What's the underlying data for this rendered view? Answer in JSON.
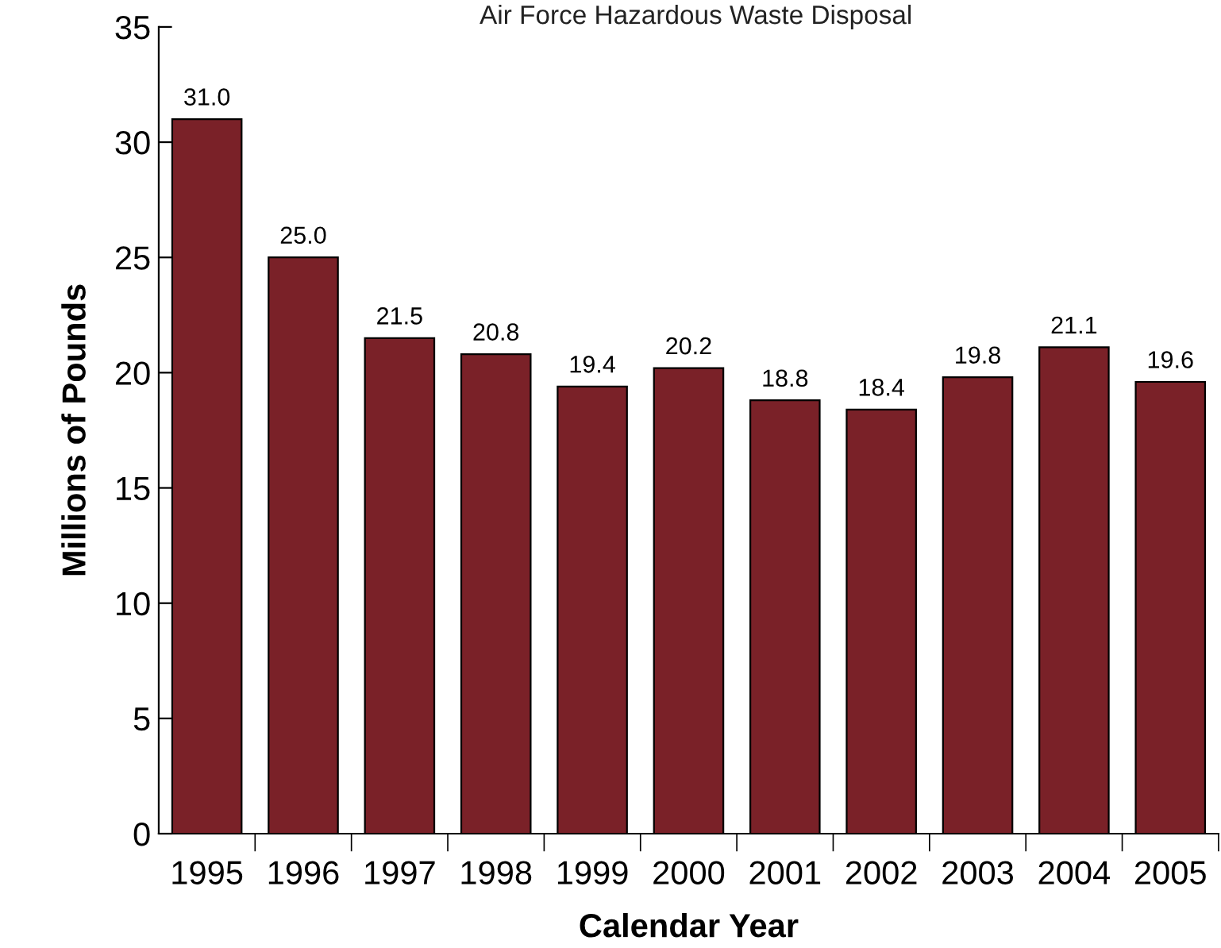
{
  "chart_data": {
    "type": "bar",
    "title": "Air Force Hazardous Waste Disposal",
    "xlabel": "Calendar Year",
    "ylabel": "Millions of Pounds",
    "categories": [
      "1995",
      "1996",
      "1997",
      "1998",
      "1999",
      "2000",
      "2001",
      "2002",
      "2003",
      "2004",
      "2005"
    ],
    "values": [
      31.0,
      25.0,
      21.5,
      20.8,
      19.4,
      20.2,
      18.8,
      18.4,
      19.8,
      21.1,
      19.6
    ],
    "value_labels": [
      "31.0",
      "25.0",
      "21.5",
      "20.8",
      "19.4",
      "20.2",
      "18.8",
      "18.4",
      "19.8",
      "21.1",
      "19.6"
    ],
    "color": "#7a2128",
    "ylim": [
      0,
      35
    ],
    "yticks": [
      0,
      5,
      10,
      15,
      20,
      25,
      30,
      35
    ],
    "grid": false,
    "legend": false
  }
}
